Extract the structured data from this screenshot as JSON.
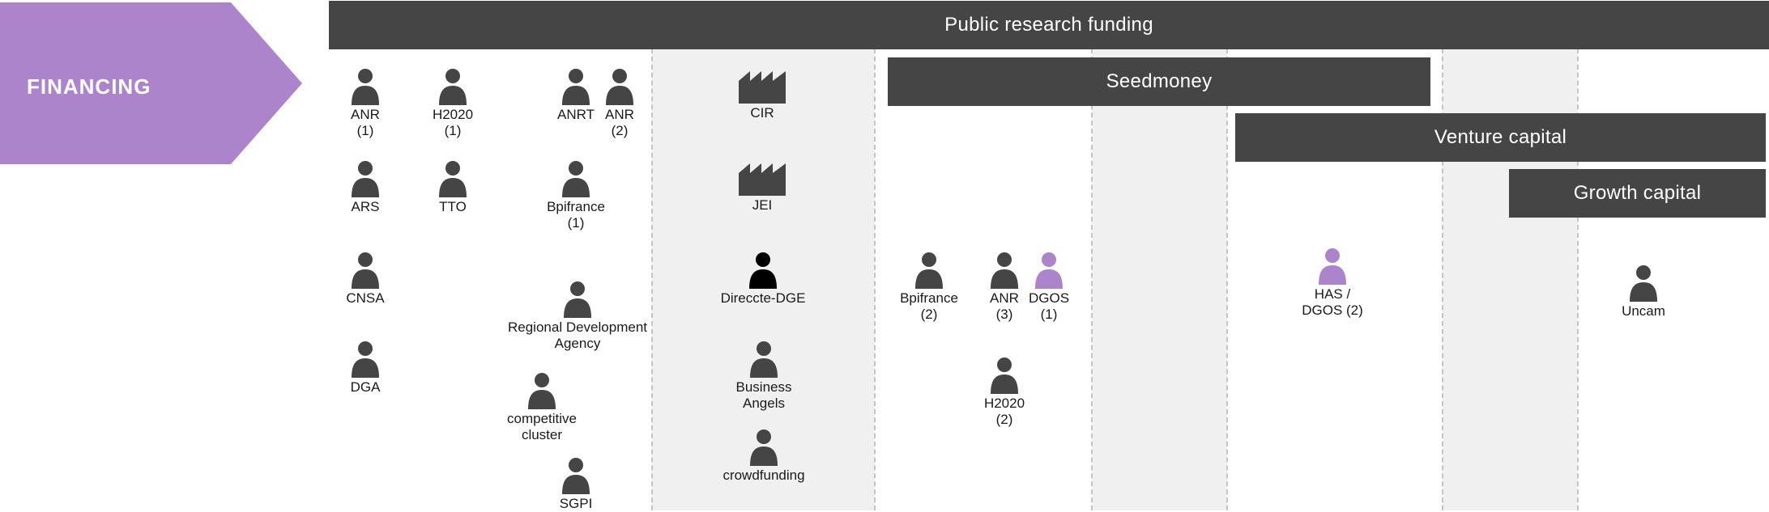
{
  "section": {
    "label": "FINANCING"
  },
  "bars": {
    "public": "Public research funding",
    "seed": "Seedmoney",
    "venture": "Venture capital",
    "growth": "Growth capital"
  },
  "colors": {
    "arrow": "#ac84cc",
    "bar": "#454545",
    "icon_default": "#454545",
    "icon_highlight": "#ac84cc",
    "icon_black": "#000000",
    "shade": "#f0f0f0"
  },
  "actors": [
    {
      "label": "ANR\n(1)",
      "icon": "person-icon"
    },
    {
      "label": "H2020\n(1)",
      "icon": "person-icon"
    },
    {
      "label": "ANRT",
      "icon": "person-icon"
    },
    {
      "label": "ANR\n(2)",
      "icon": "person-icon"
    },
    {
      "label": "ARS",
      "icon": "person-icon"
    },
    {
      "label": "TTO",
      "icon": "person-icon"
    },
    {
      "label": "Bpifrance\n(1)",
      "icon": "person-icon"
    },
    {
      "label": "CNSA",
      "icon": "person-icon"
    },
    {
      "label": "Regional Development\nAgency",
      "icon": "person-icon"
    },
    {
      "label": "DGA",
      "icon": "person-icon"
    },
    {
      "label": "competitive\ncluster",
      "icon": "person-icon"
    },
    {
      "label": "SGPI",
      "icon": "person-icon"
    },
    {
      "label": "CIR",
      "icon": "factory-icon"
    },
    {
      "label": "JEI",
      "icon": "factory-icon"
    },
    {
      "label": "Direccte-DGE",
      "icon": "person-icon"
    },
    {
      "label": "Business\nAngels",
      "icon": "person-icon"
    },
    {
      "label": "crowdfunding",
      "icon": "person-icon"
    },
    {
      "label": "Bpifrance\n(2)",
      "icon": "person-icon"
    },
    {
      "label": "ANR\n(3)",
      "icon": "person-icon"
    },
    {
      "label": "DGOS\n(1)",
      "icon": "person-icon"
    },
    {
      "label": "H2020\n(2)",
      "icon": "person-icon"
    },
    {
      "label": "HAS /\nDGOS (2)",
      "icon": "person-icon"
    },
    {
      "label": "Uncam",
      "icon": "person-icon"
    }
  ]
}
